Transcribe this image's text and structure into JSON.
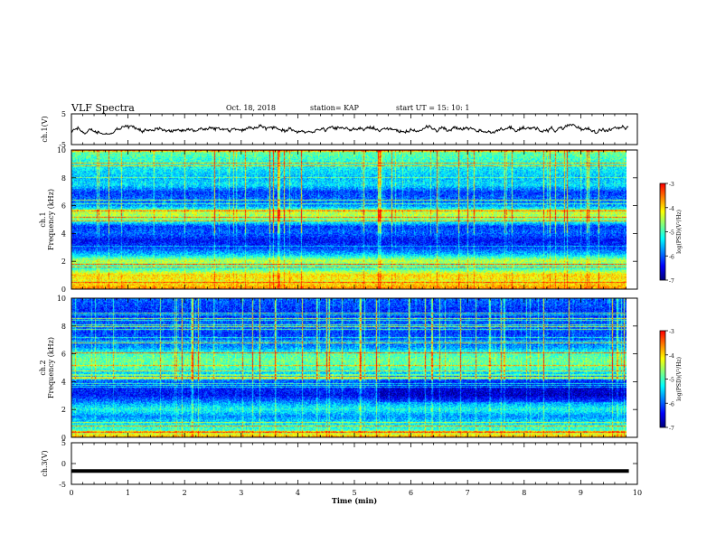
{
  "header": {
    "title": "VLF Spectra",
    "date": "Oct. 18, 2018",
    "station": "station= KAP",
    "start": "start  UT =   15: 10: 1"
  },
  "colors": {
    "map": [
      "#00007f",
      "#0000ff",
      "#0080ff",
      "#00ffff",
      "#80ff80",
      "#ffff00",
      "#ff8000",
      "#ff0000",
      "#ffffff"
    ]
  },
  "chart_data": [
    {
      "type": "line",
      "panel": "ch1-voltage",
      "ylabel": "ch.1(V)",
      "ylim": [
        -5,
        5
      ],
      "yticks": [
        "5",
        "-5"
      ],
      "xlim": [
        0,
        10
      ],
      "note": "noisy waveform, approx range",
      "y_range_observed": [
        -1,
        1
      ]
    },
    {
      "type": "heatmap",
      "panel": "ch1-spectrogram",
      "ylabel": "ch.1\nFrequency (kHz)",
      "ylim": [
        0,
        10
      ],
      "yticks": [
        "0",
        "2",
        "4",
        "6",
        "8",
        "10"
      ],
      "xlim": [
        0,
        9.85
      ],
      "colorbar": {
        "label": "log(PSD)(V²/Hz)",
        "range": [
          -7,
          -3
        ],
        "ticks": [
          "-3",
          "-4",
          "-5",
          "-6",
          "-7"
        ]
      },
      "band_levels_kHz_log": [
        [
          0.0,
          -3.6
        ],
        [
          0.5,
          -4.2
        ],
        [
          1.0,
          -4.0
        ],
        [
          1.5,
          -5.2
        ],
        [
          2.0,
          -4.4
        ],
        [
          2.5,
          -5.6
        ],
        [
          3.0,
          -6.2
        ],
        [
          3.5,
          -6.4
        ],
        [
          4.0,
          -6.0
        ],
        [
          4.5,
          -6.2
        ],
        [
          5.0,
          -4.8
        ],
        [
          5.5,
          -4.4
        ],
        [
          6.0,
          -5.8
        ],
        [
          6.5,
          -6.0
        ],
        [
          7.0,
          -6.2
        ],
        [
          7.5,
          -5.4
        ],
        [
          8.0,
          -5.6
        ],
        [
          9.0,
          -5.2
        ],
        [
          10.0,
          -4.8
        ]
      ]
    },
    {
      "type": "heatmap",
      "panel": "ch2-spectrogram",
      "ylabel": "ch.2\nFrequency (kHz)",
      "ylim": [
        0,
        10
      ],
      "yticks": [
        "0",
        "2",
        "4",
        "6",
        "8",
        "10"
      ],
      "xlim": [
        0,
        9.85
      ],
      "colorbar": {
        "label": "log(PSD)(V²/Hz)",
        "range": [
          -7,
          -3
        ],
        "ticks": [
          "-3",
          "-4",
          "-5",
          "-6",
          "-7"
        ]
      },
      "band_levels_kHz_log": [
        [
          0.0,
          -3.8
        ],
        [
          0.5,
          -5.0
        ],
        [
          1.0,
          -5.4
        ],
        [
          1.5,
          -5.8
        ],
        [
          2.0,
          -5.2
        ],
        [
          2.5,
          -5.8
        ],
        [
          3.0,
          -6.4
        ],
        [
          3.5,
          -6.3
        ],
        [
          4.0,
          -6.0
        ],
        [
          4.5,
          -5.6
        ],
        [
          5.0,
          -5.0
        ],
        [
          5.5,
          -4.8
        ],
        [
          6.0,
          -5.0
        ],
        [
          6.5,
          -5.8
        ],
        [
          7.0,
          -6.0
        ],
        [
          7.5,
          -6.2
        ],
        [
          8.0,
          -6.0
        ],
        [
          9.0,
          -6.3
        ],
        [
          10.0,
          -6.0
        ]
      ]
    },
    {
      "type": "line",
      "panel": "ch3-voltage",
      "ylabel": "ch.3(V)",
      "ylim": [
        -5,
        5
      ],
      "yticks": [
        "5",
        "0",
        "-5"
      ],
      "xlim": [
        0,
        10
      ],
      "y_constant": -1.8,
      "xlabel": "Time  (min)",
      "xticks": [
        "0",
        "1",
        "2",
        "3",
        "4",
        "5",
        "6",
        "7",
        "8",
        "9",
        "10"
      ]
    }
  ]
}
